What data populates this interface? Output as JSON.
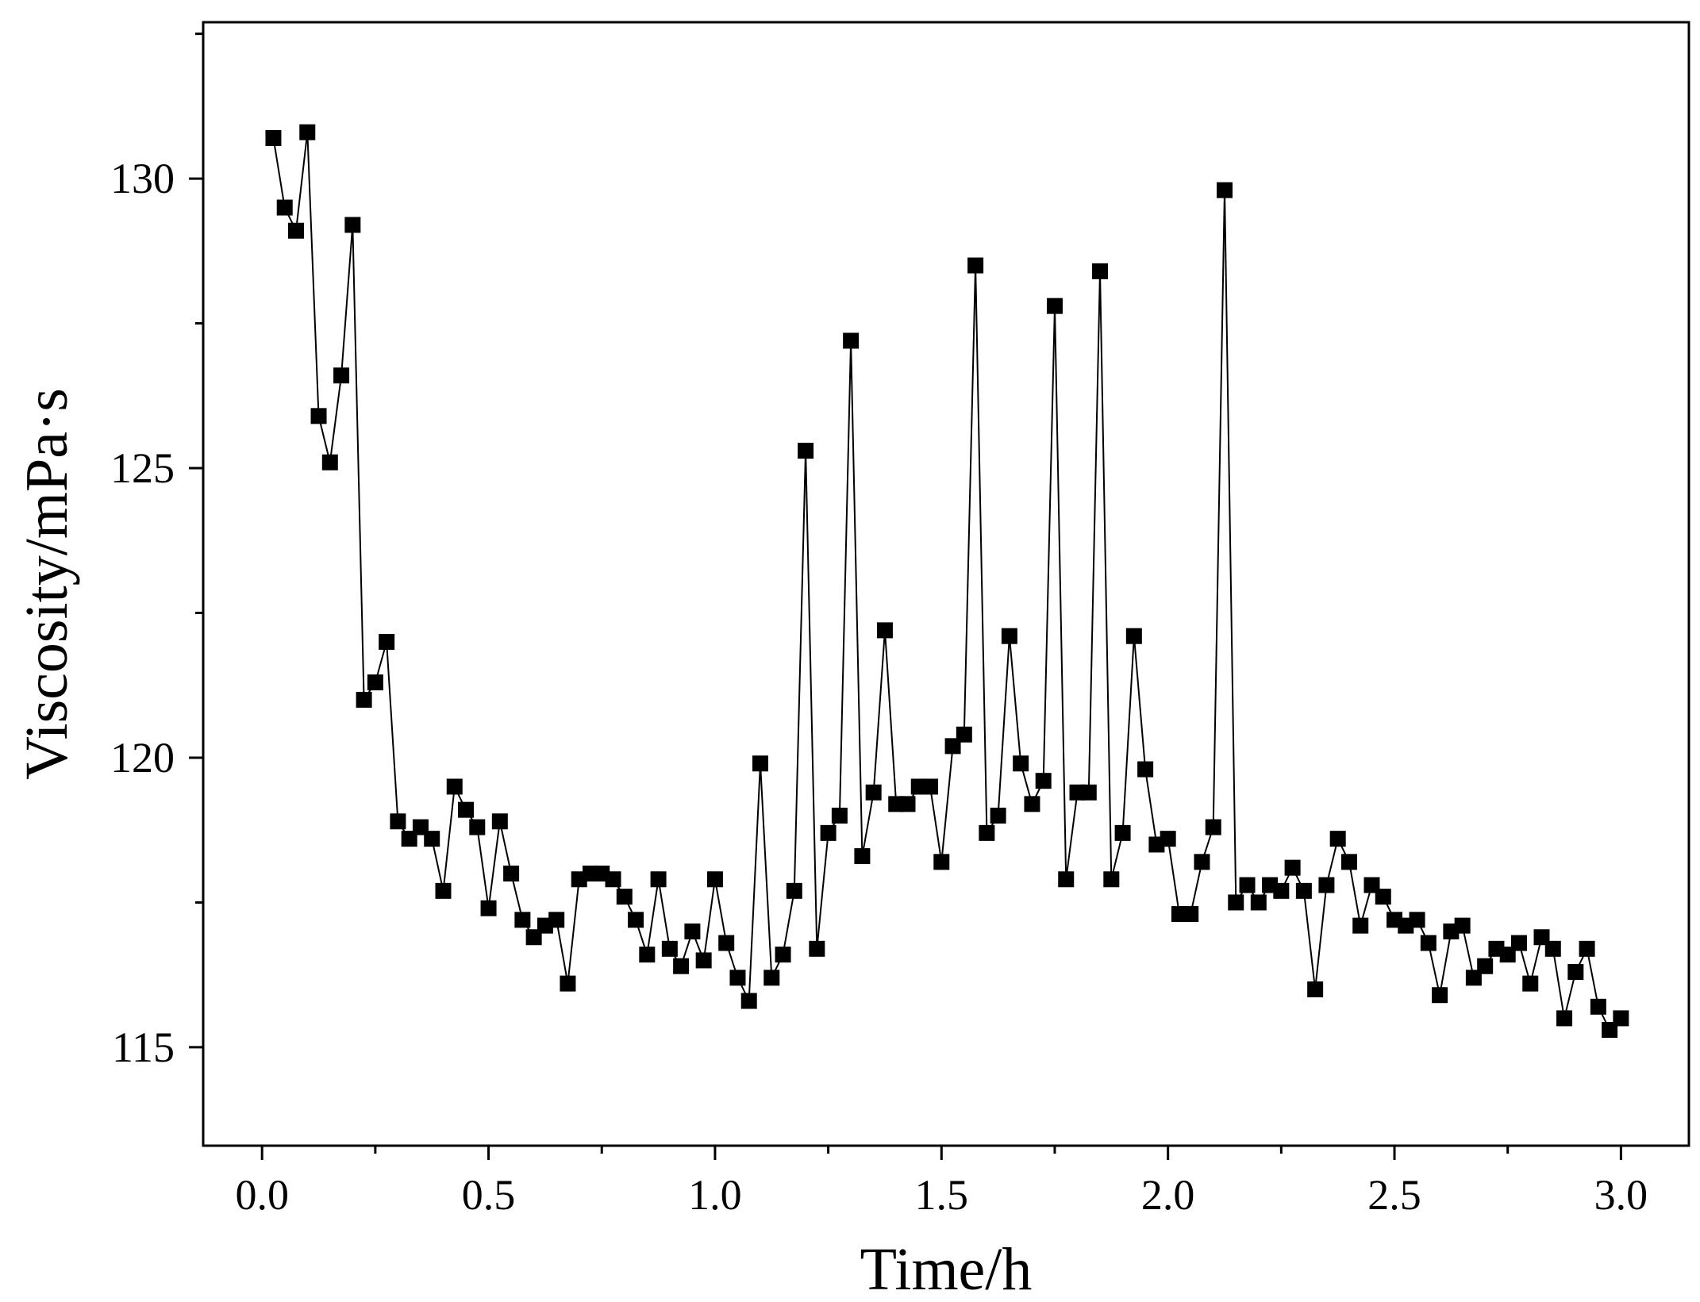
{
  "chart_data": {
    "type": "line",
    "title": "",
    "xlabel": "Time/h",
    "ylabel": "Viscosity/mPa·s",
    "xlim": [
      -0.13,
      3.15
    ],
    "ylim": [
      113.3,
      132.7
    ],
    "xticks": [
      0.0,
      0.5,
      1.0,
      1.5,
      2.0,
      2.5,
      3.0
    ],
    "xtick_labels": [
      "0.0",
      "0.5",
      "1.0",
      "1.5",
      "2.0",
      "2.5",
      "3.0"
    ],
    "yticks": [
      115,
      120,
      125,
      130
    ],
    "ytick_labels": [
      "115",
      "120",
      "125",
      "130"
    ],
    "grid": false,
    "legend": "none",
    "marker": "square",
    "color": "#000000",
    "series": [
      {
        "x": [
          0.025,
          0.05,
          0.075,
          0.1,
          0.125,
          0.15,
          0.175,
          0.2,
          0.225,
          0.25,
          0.275,
          0.3,
          0.325,
          0.35,
          0.375,
          0.4,
          0.425,
          0.45,
          0.475,
          0.5,
          0.525,
          0.55,
          0.575,
          0.6,
          0.625,
          0.65,
          0.675,
          0.7,
          0.725,
          0.75,
          0.775,
          0.8,
          0.825,
          0.85,
          0.875,
          0.9,
          0.925,
          0.95,
          0.975,
          1.0,
          1.025,
          1.05,
          1.075,
          1.1,
          1.125,
          1.15,
          1.175,
          1.2,
          1.225,
          1.25,
          1.275,
          1.3,
          1.325,
          1.35,
          1.375,
          1.4,
          1.425,
          1.45,
          1.475,
          1.5,
          1.525,
          1.55,
          1.575,
          1.6,
          1.625,
          1.65,
          1.675,
          1.7,
          1.725,
          1.75,
          1.775,
          1.8,
          1.825,
          1.85,
          1.875,
          1.9,
          1.925,
          1.95,
          1.975,
          2.0,
          2.025,
          2.05,
          2.075,
          2.1,
          2.125,
          2.15,
          2.175,
          2.2,
          2.225,
          2.25,
          2.275,
          2.3,
          2.325,
          2.35,
          2.375,
          2.4,
          2.425,
          2.45,
          2.475,
          2.5,
          2.525,
          2.55,
          2.575,
          2.6,
          2.625,
          2.65,
          2.675,
          2.7,
          2.725,
          2.75,
          2.775,
          2.8,
          2.825,
          2.85,
          2.875,
          2.9,
          2.925,
          2.95,
          2.975,
          3.0
        ],
        "y": [
          130.7,
          129.5,
          129.1,
          130.8,
          125.9,
          125.1,
          126.6,
          129.2,
          121.0,
          121.3,
          122.0,
          118.9,
          118.6,
          118.8,
          118.6,
          117.7,
          119.5,
          119.1,
          118.8,
          117.4,
          118.9,
          118.0,
          117.2,
          116.9,
          117.1,
          117.2,
          116.1,
          117.9,
          118.0,
          118.0,
          117.9,
          117.6,
          117.2,
          116.6,
          117.9,
          116.7,
          116.4,
          117.0,
          116.5,
          117.9,
          116.8,
          116.2,
          115.8,
          119.9,
          116.2,
          116.6,
          117.7,
          125.3,
          116.7,
          118.7,
          119.0,
          127.2,
          118.3,
          119.4,
          122.2,
          119.2,
          119.2,
          119.5,
          119.5,
          118.2,
          120.2,
          120.4,
          128.5,
          118.7,
          119.0,
          122.1,
          119.9,
          119.2,
          119.6,
          127.8,
          117.9,
          119.4,
          119.4,
          128.4,
          117.9,
          118.7,
          122.1,
          119.8,
          118.5,
          118.6,
          117.3,
          117.3,
          118.2,
          118.8,
          129.8,
          117.5,
          117.8,
          117.5,
          117.8,
          117.7,
          118.1,
          117.7,
          116.0,
          117.8,
          118.6,
          118.2,
          117.1,
          117.8,
          117.6,
          117.2,
          117.1,
          117.2,
          116.8,
          115.9,
          117.0,
          117.1,
          116.2,
          116.4,
          116.7,
          116.6,
          116.8,
          116.1,
          116.9,
          116.7,
          115.5,
          116.3,
          116.7,
          115.7,
          115.3,
          115.5
        ]
      }
    ]
  }
}
